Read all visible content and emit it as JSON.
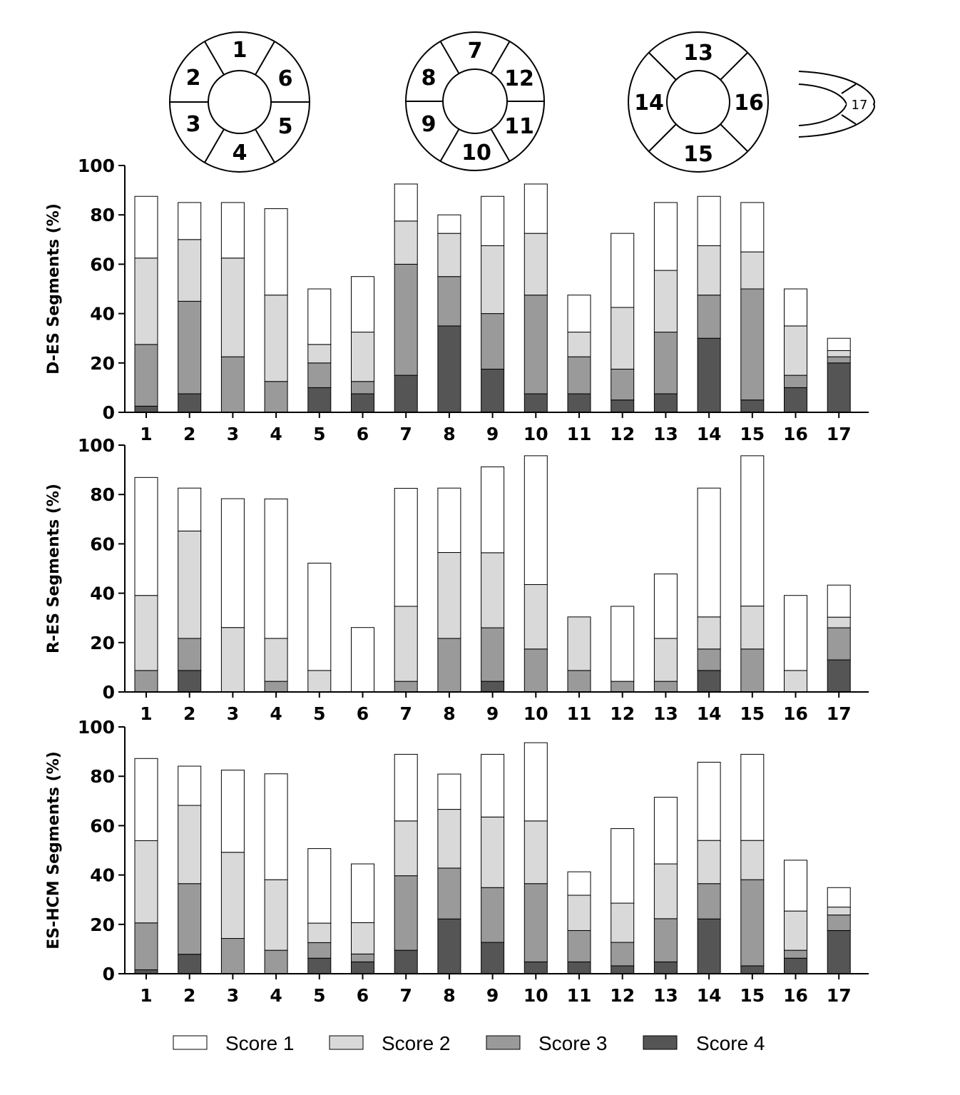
{
  "diagram": {
    "basal": [
      "1",
      "2",
      "3",
      "4",
      "5",
      "6"
    ],
    "mid": [
      "7",
      "8",
      "9",
      "10",
      "11",
      "12"
    ],
    "apical": [
      "13",
      "14",
      "15",
      "16"
    ],
    "apex": "17"
  },
  "legend": [
    {
      "label": "Score 1",
      "color": "#ffffff"
    },
    {
      "label": "Score 2",
      "color": "#d9d9d9"
    },
    {
      "label": "Score 3",
      "color": "#9a9a9a"
    },
    {
      "label": "Score 4",
      "color": "#555555"
    }
  ],
  "chart_data": [
    {
      "type": "bar",
      "stacked": true,
      "ylabel": "D-ES Segments (%)",
      "ylim": [
        0,
        100
      ],
      "yticks": [
        "0",
        "20",
        "40",
        "60",
        "80",
        "100"
      ],
      "categories": [
        "1",
        "2",
        "3",
        "4",
        "5",
        "6",
        "7",
        "8",
        "9",
        "10",
        "11",
        "12",
        "13",
        "14",
        "15",
        "16",
        "17"
      ],
      "series": [
        {
          "name": "Score 4",
          "values": [
            2.5,
            7.5,
            0,
            0,
            10,
            7.5,
            15,
            35,
            17.5,
            7.5,
            7.5,
            5,
            7.5,
            30,
            5,
            10,
            20
          ]
        },
        {
          "name": "Score 3",
          "values": [
            25,
            37.5,
            22.5,
            12.5,
            10,
            5,
            45,
            20,
            22.5,
            40,
            15,
            12.5,
            25,
            17.5,
            45,
            5,
            2.5
          ]
        },
        {
          "name": "Score 2",
          "values": [
            35,
            25,
            40,
            35,
            7.5,
            20,
            17.5,
            17.5,
            27.5,
            25,
            10,
            25,
            25,
            20,
            15,
            20,
            2.5
          ]
        },
        {
          "name": "Score 1",
          "values": [
            25,
            15,
            22.5,
            35,
            22.5,
            22.5,
            15,
            7.5,
            20,
            20,
            15,
            30,
            27.5,
            20,
            20,
            15,
            5
          ]
        }
      ]
    },
    {
      "type": "bar",
      "stacked": true,
      "ylabel": "R-ES Segments (%)",
      "ylim": [
        0,
        100
      ],
      "yticks": [
        "0",
        "20",
        "40",
        "60",
        "80",
        "100"
      ],
      "categories": [
        "1",
        "2",
        "3",
        "4",
        "5",
        "6",
        "7",
        "8",
        "9",
        "10",
        "11",
        "12",
        "13",
        "14",
        "15",
        "16",
        "17"
      ],
      "series": [
        {
          "name": "Score 4",
          "values": [
            0,
            8.7,
            0,
            0,
            0,
            0,
            0,
            0,
            4.3,
            0,
            0,
            0,
            0,
            8.7,
            0,
            0,
            13
          ]
        },
        {
          "name": "Score 3",
          "values": [
            8.7,
            13,
            0,
            4.3,
            0,
            0,
            4.3,
            21.7,
            21.7,
            17.4,
            8.7,
            4.3,
            4.3,
            8.7,
            17.4,
            0,
            13
          ]
        },
        {
          "name": "Score 2",
          "values": [
            30.4,
            43.5,
            26.1,
            17.4,
            8.7,
            0,
            30.4,
            34.8,
            30.4,
            26.1,
            21.7,
            0,
            17.4,
            13,
            17.4,
            8.7,
            4.3
          ]
        },
        {
          "name": "Score 1",
          "values": [
            47.8,
            17.4,
            52.2,
            56.5,
            43.5,
            26.1,
            47.8,
            26.1,
            34.8,
            52.2,
            0,
            30.4,
            26.1,
            52.2,
            60.9,
            30.4,
            13
          ]
        }
      ]
    },
    {
      "type": "bar",
      "stacked": true,
      "ylabel": "ES-HCM Segments (%)",
      "ylim": [
        0,
        100
      ],
      "yticks": [
        "0",
        "20",
        "40",
        "60",
        "80",
        "100"
      ],
      "categories": [
        "1",
        "2",
        "3",
        "4",
        "5",
        "6",
        "7",
        "8",
        "9",
        "10",
        "11",
        "12",
        "13",
        "14",
        "15",
        "16",
        "17"
      ],
      "series": [
        {
          "name": "Score 4",
          "values": [
            1.6,
            7.9,
            0,
            0,
            6.3,
            4.8,
            9.5,
            22.2,
            12.7,
            4.8,
            4.8,
            3.2,
            4.8,
            22.2,
            3.2,
            6.3,
            17.5
          ]
        },
        {
          "name": "Score 3",
          "values": [
            19,
            28.6,
            14.3,
            9.5,
            6.3,
            3.2,
            30.2,
            20.6,
            22.2,
            31.7,
            12.7,
            9.5,
            17.5,
            14.3,
            34.9,
            3.2,
            6.3
          ]
        },
        {
          "name": "Score 2",
          "values": [
            33.3,
            31.7,
            34.9,
            28.6,
            7.9,
            12.7,
            22.2,
            23.8,
            28.6,
            25.4,
            14.3,
            15.9,
            22.2,
            17.5,
            15.9,
            15.9,
            3.2
          ]
        },
        {
          "name": "Score 1",
          "values": [
            33.3,
            15.9,
            33.3,
            42.9,
            30.2,
            23.8,
            27,
            14.3,
            25.4,
            31.7,
            9.5,
            30.2,
            27,
            31.7,
            34.9,
            20.6,
            7.9
          ]
        }
      ]
    }
  ]
}
